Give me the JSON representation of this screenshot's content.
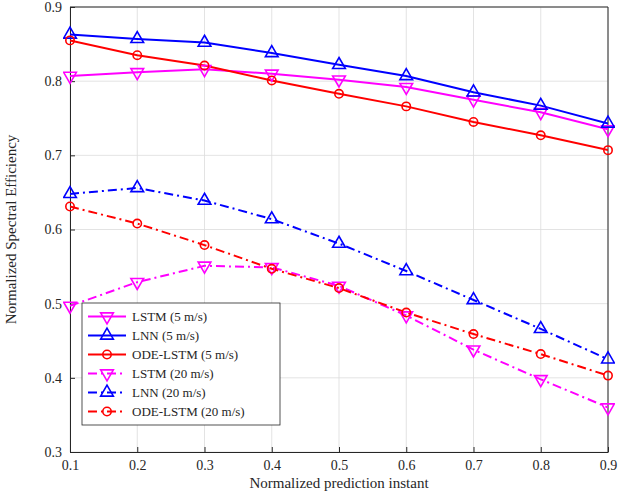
{
  "chart_data": {
    "type": "line",
    "x_label": "Normalized prediction instant",
    "y_label": "Normalized Spectral Efficiency",
    "x": [
      0.1,
      0.2,
      0.3,
      0.4,
      0.5,
      0.6,
      0.7,
      0.8,
      0.9
    ],
    "xlim": [
      0.1,
      0.9
    ],
    "xticks": [
      0.1,
      0.2,
      0.3,
      0.4,
      0.5,
      0.6,
      0.7,
      0.8,
      0.9
    ],
    "ylim": [
      0.3,
      0.9
    ],
    "yticks": [
      0.3,
      0.4,
      0.5,
      0.6,
      0.7,
      0.8,
      0.9
    ],
    "grid": true,
    "legend": "lower-left",
    "series": [
      {
        "name": "LSTM (5 m/s)",
        "color": "#ff00ff",
        "marker": "triangle-down",
        "line_style": "solid",
        "values": [
          0.807,
          0.812,
          0.816,
          0.81,
          0.802,
          0.792,
          0.775,
          0.758,
          0.735
        ]
      },
      {
        "name": "LNN (5 m/s)",
        "color": "#0000ff",
        "marker": "triangle-up",
        "line_style": "solid",
        "values": [
          0.863,
          0.857,
          0.852,
          0.838,
          0.822,
          0.807,
          0.785,
          0.767,
          0.743
        ]
      },
      {
        "name": "ODE-LSTM (5 m/s)",
        "color": "#ff0000",
        "marker": "circle",
        "line_style": "solid",
        "values": [
          0.855,
          0.835,
          0.821,
          0.801,
          0.783,
          0.766,
          0.745,
          0.727,
          0.707
        ]
      },
      {
        "name": "LSTM (20 m/s)",
        "color": "#ff00ff",
        "marker": "triangle-down",
        "line_style": "dashdot",
        "values": [
          0.497,
          0.529,
          0.551,
          0.549,
          0.524,
          0.484,
          0.438,
          0.398,
          0.36
        ]
      },
      {
        "name": "LNN (20 m/s)",
        "color": "#0000ff",
        "marker": "triangle-up",
        "line_style": "dashdot",
        "values": [
          0.648,
          0.656,
          0.639,
          0.614,
          0.581,
          0.544,
          0.505,
          0.466,
          0.425
        ]
      },
      {
        "name": "ODE-LSTM (20 m/s)",
        "color": "#ff0000",
        "marker": "circle",
        "line_style": "dashdot",
        "values": [
          0.631,
          0.608,
          0.579,
          0.547,
          0.521,
          0.488,
          0.459,
          0.432,
          0.403
        ]
      }
    ]
  }
}
